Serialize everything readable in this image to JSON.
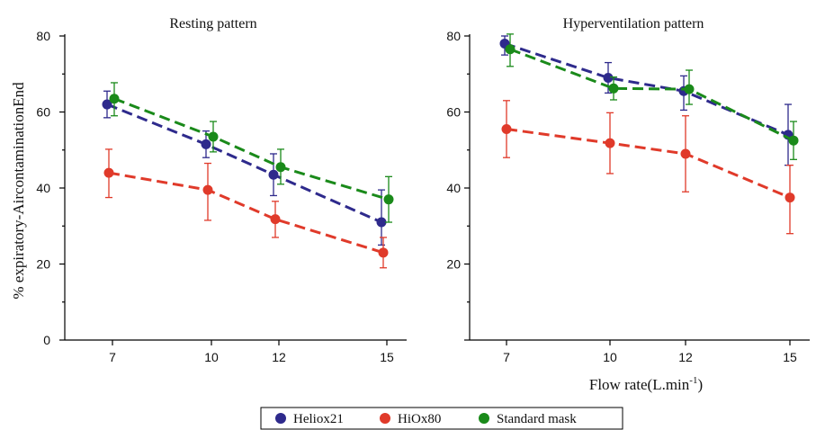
{
  "chart_data": [
    {
      "type": "line",
      "title": "Resting pattern",
      "ylabel": "% expiratory-AircontaminationEnd",
      "xlabel": "",
      "x": [
        7,
        10,
        12,
        15
      ],
      "xticks": [
        "7",
        "10",
        "12",
        "15"
      ],
      "ylim": [
        0,
        80
      ],
      "yticks": [
        "0",
        "20",
        "40",
        "60",
        "80"
      ],
      "grid": false,
      "series": [
        {
          "name": "Heliox21",
          "color": "#2e2a8c",
          "values": [
            62,
            51.5,
            43.5,
            31
          ],
          "err_low": [
            3.5,
            3.5,
            5.5,
            6
          ],
          "err_high": [
            3.5,
            3.5,
            5.5,
            8.5
          ]
        },
        {
          "name": "HiOx80",
          "color": "#e03a2a",
          "values": [
            44,
            39.5,
            31.8,
            23
          ],
          "err_low": [
            6.5,
            8,
            4.8,
            4
          ],
          "err_high": [
            6.2,
            7,
            4.7,
            4
          ]
        },
        {
          "name": "Standard mask",
          "color": "#1a8a1a",
          "values": [
            63.5,
            53.5,
            45.5,
            37
          ],
          "err_low": [
            4.5,
            4,
            4.5,
            6
          ],
          "err_high": [
            4.2,
            4,
            4.7,
            6
          ]
        }
      ]
    },
    {
      "type": "line",
      "title": "Hyperventilation pattern",
      "ylabel": "",
      "xlabel": "Flow rate(L.min",
      "xlabel_sup": "-1",
      "xlabel_end": ")",
      "x": [
        7,
        10,
        12,
        15
      ],
      "xticks": [
        "7",
        "10",
        "12",
        "15"
      ],
      "ylim": [
        0,
        80
      ],
      "yticks": [
        "20",
        "40",
        "60",
        "80"
      ],
      "grid": false,
      "series": [
        {
          "name": "Heliox21",
          "color": "#2e2a8c",
          "values": [
            78,
            69,
            65.5,
            54
          ],
          "err_low": [
            3,
            4,
            5,
            8
          ],
          "err_high": [
            2,
            4,
            4,
            8
          ]
        },
        {
          "name": "HiOx80",
          "color": "#e03a2a",
          "values": [
            55.5,
            51.8,
            49,
            37.5
          ],
          "err_low": [
            7.5,
            8,
            10,
            9.5
          ],
          "err_high": [
            7.5,
            8,
            10,
            8.5
          ]
        },
        {
          "name": "Standard mask",
          "color": "#1a8a1a",
          "values": [
            76.5,
            66.2,
            66,
            52.5
          ],
          "err_low": [
            4.5,
            3,
            4,
            5
          ],
          "err_high": [
            4,
            3,
            5,
            5
          ]
        }
      ]
    }
  ],
  "legend": {
    "placement": "bottom-center",
    "items": [
      {
        "label": "Heliox21",
        "color": "#2e2a8c"
      },
      {
        "label": "HiOx80",
        "color": "#e03a2a"
      },
      {
        "label": "Standard mask",
        "color": "#1a8a1a"
      }
    ]
  }
}
